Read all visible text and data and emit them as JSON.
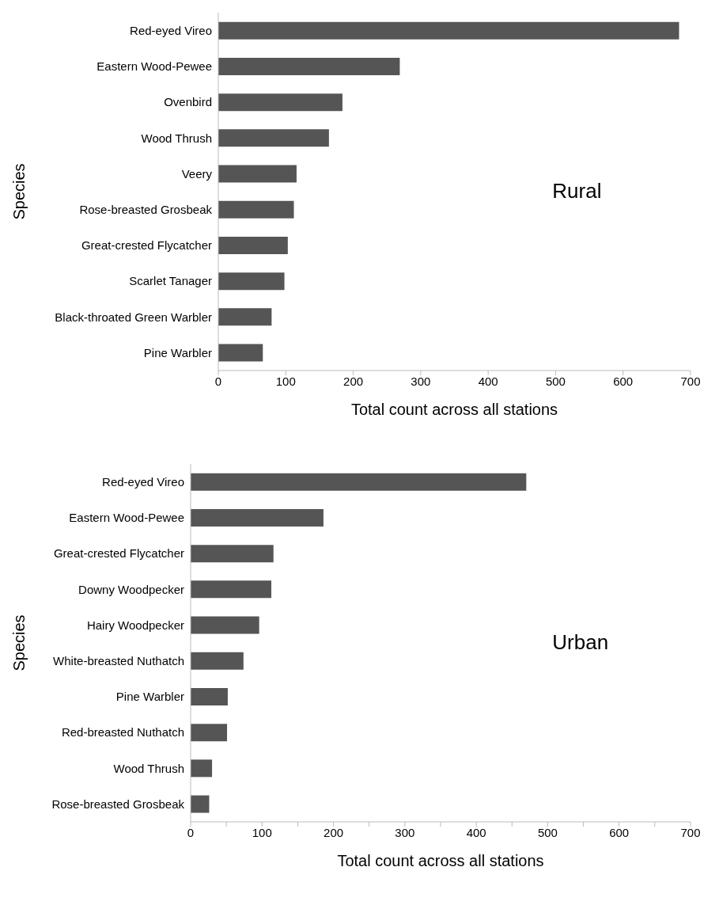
{
  "chart_data": [
    {
      "type": "bar",
      "orientation": "horizontal",
      "xlabel": "Total count across all stations",
      "ylabel": "Species",
      "annotations": [
        "Rural"
      ],
      "categories": [
        "Red-eyed Vireo",
        "Eastern Wood-Pewee",
        "Ovenbird",
        "Wood Thrush",
        "Veery",
        "Rose-breasted Grosbeak",
        "Great-crested Flycatcher",
        "Scarlet Tanager",
        "Black-throated Green Warbler",
        "Pine Warbler"
      ],
      "values": [
        683,
        269,
        184,
        164,
        116,
        112,
        103,
        98,
        79,
        66
      ],
      "color": "#555555",
      "xlim": [
        0,
        700
      ],
      "xticks": [
        0,
        100,
        200,
        300,
        400,
        500,
        600,
        700
      ],
      "grid": false,
      "legend": false
    },
    {
      "type": "bar",
      "orientation": "horizontal",
      "xlabel": "Total count across all stations",
      "ylabel": "Species",
      "annotations": [
        "Urban"
      ],
      "categories": [
        "Red-eyed Vireo",
        "Eastern Wood-Pewee",
        "Great-crested Flycatcher",
        "Downy Woodpecker",
        "Hairy Woodpecker",
        "White-breasted Nuthatch",
        "Pine Warbler",
        "Red-breasted Nuthatch",
        "Wood Thrush",
        "Rose-breasted Grosbeak"
      ],
      "values": [
        470,
        186,
        116,
        113,
        96,
        74,
        52,
        51,
        30,
        26
      ],
      "color": "#555555",
      "xlim": [
        0,
        700
      ],
      "xticks": [
        0,
        {
          "value": 50,
          "label": null
        },
        100,
        {
          "value": 150,
          "label": null
        },
        200,
        {
          "value": 250,
          "label": null
        },
        300,
        {
          "value": 350,
          "label": null
        },
        400,
        {
          "value": 450,
          "label": null
        },
        500,
        {
          "value": 550,
          "label": null
        },
        600,
        {
          "value": 650,
          "label": null
        },
        700
      ],
      "grid": false,
      "legend": false
    }
  ]
}
